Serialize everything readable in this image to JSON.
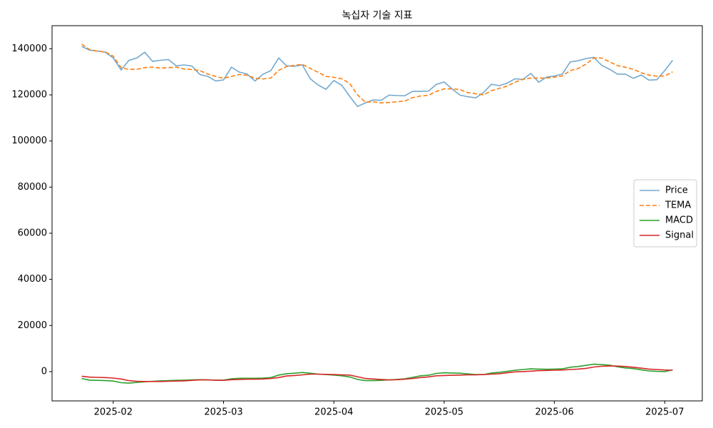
{
  "chart_data": {
    "type": "line",
    "title": "녹십자 기술 지표",
    "categories": [
      null,
      null,
      null,
      null,
      "2025-02",
      null,
      null,
      null,
      null,
      null,
      null,
      null,
      null,
      null,
      null,
      null,
      null,
      null,
      "2025-03",
      null,
      null,
      null,
      null,
      null,
      null,
      null,
      null,
      null,
      null,
      null,
      null,
      null,
      "2025-04",
      null,
      null,
      null,
      null,
      null,
      null,
      null,
      null,
      null,
      null,
      null,
      null,
      null,
      "2025-05",
      null,
      null,
      null,
      null,
      null,
      null,
      null,
      null,
      null,
      null,
      null,
      null,
      null,
      "2025-06",
      null,
      null,
      null,
      null,
      null,
      null,
      null,
      null,
      null,
      null,
      null,
      null,
      null,
      "2025-07",
      null
    ],
    "series": [
      {
        "name": "Price",
        "color": "#74a9cf",
        "linestyle": "solid",
        "values": [
          141000,
          139400,
          139000,
          138500,
          136000,
          130800,
          135000,
          136000,
          138500,
          134500,
          135000,
          135300,
          132600,
          133000,
          132500,
          128800,
          128000,
          126000,
          126500,
          132000,
          129900,
          129000,
          126000,
          128900,
          130500,
          136000,
          132600,
          132400,
          133000,
          127000,
          124300,
          122400,
          126200,
          124200,
          119400,
          115000,
          116500,
          117800,
          117600,
          119900,
          119700,
          119600,
          121500,
          121500,
          121600,
          124500,
          125600,
          122600,
          119900,
          119200,
          118700,
          121000,
          124600,
          124000,
          125100,
          127000,
          126700,
          129300,
          125500,
          127700,
          128200,
          129000,
          134300,
          134800,
          135700,
          136300,
          132800,
          131100,
          129000,
          129000,
          127200,
          128600,
          126400,
          126600,
          130500,
          135000
        ]
      },
      {
        "name": "TEMA",
        "color": "#ff7f0e",
        "linestyle": "dashed",
        "values": [
          142000,
          139600,
          139000,
          138600,
          136800,
          131800,
          131000,
          131100,
          131800,
          132000,
          131600,
          131800,
          132000,
          131200,
          131000,
          130500,
          129000,
          128000,
          127200,
          128000,
          128800,
          128500,
          127200,
          126900,
          127300,
          130600,
          132300,
          132800,
          133200,
          131500,
          129800,
          128000,
          127600,
          127000,
          125000,
          120000,
          116800,
          117000,
          116500,
          116700,
          117000,
          117300,
          118800,
          119500,
          119800,
          121500,
          122600,
          122600,
          122300,
          121000,
          120500,
          120000,
          121800,
          122800,
          123800,
          125500,
          126700,
          127300,
          127300,
          127300,
          127700,
          128200,
          130500,
          131400,
          133300,
          136000,
          136000,
          134300,
          132700,
          132000,
          131100,
          129600,
          128600,
          128100,
          128200,
          130000
        ]
      },
      {
        "name": "MACD",
        "color": "#2ca02c",
        "linestyle": "solid",
        "values": [
          -3000,
          -3700,
          -3800,
          -3900,
          -4100,
          -4800,
          -5000,
          -4700,
          -4400,
          -4200,
          -4000,
          -3900,
          -3800,
          -3700,
          -3600,
          -3500,
          -3600,
          -3700,
          -3700,
          -3100,
          -2900,
          -2900,
          -2900,
          -2800,
          -2600,
          -1500,
          -900,
          -700,
          -400,
          -700,
          -1100,
          -1300,
          -1500,
          -1800,
          -2300,
          -3400,
          -3900,
          -3900,
          -3800,
          -3600,
          -3400,
          -3100,
          -2500,
          -1800,
          -1600,
          -800,
          -500,
          -600,
          -700,
          -1000,
          -1300,
          -1300,
          -600,
          -300,
          100,
          600,
          900,
          1200,
          1100,
          1000,
          1100,
          1200,
          1900,
          2200,
          2700,
          3200,
          3000,
          2800,
          2100,
          1600,
          1300,
          800,
          300,
          100,
          0,
          800
        ]
      },
      {
        "name": "Signal",
        "color": "#d62728",
        "linestyle": "solid",
        "values": [
          -2000,
          -2400,
          -2500,
          -2600,
          -2800,
          -3200,
          -3900,
          -4200,
          -4300,
          -4300,
          -4300,
          -4200,
          -4100,
          -4000,
          -3800,
          -3600,
          -3600,
          -3700,
          -3800,
          -3500,
          -3400,
          -3300,
          -3300,
          -3200,
          -3000,
          -2600,
          -1900,
          -1700,
          -1400,
          -1100,
          -1100,
          -1200,
          -1300,
          -1400,
          -1500,
          -2200,
          -3000,
          -3200,
          -3400,
          -3600,
          -3500,
          -3300,
          -3000,
          -2600,
          -2300,
          -1800,
          -1700,
          -1600,
          -1500,
          -1400,
          -1400,
          -1300,
          -1100,
          -900,
          -500,
          -100,
          0,
          200,
          400,
          500,
          600,
          700,
          900,
          1100,
          1400,
          2000,
          2300,
          2500,
          2400,
          2200,
          1900,
          1500,
          1100,
          900,
          700,
          600
        ]
      }
    ],
    "ylim": [
      -12700,
      150000
    ],
    "yticks": [
      0,
      20000,
      40000,
      60000,
      80000,
      100000,
      120000,
      140000
    ],
    "grid": false,
    "legend": "center right"
  }
}
